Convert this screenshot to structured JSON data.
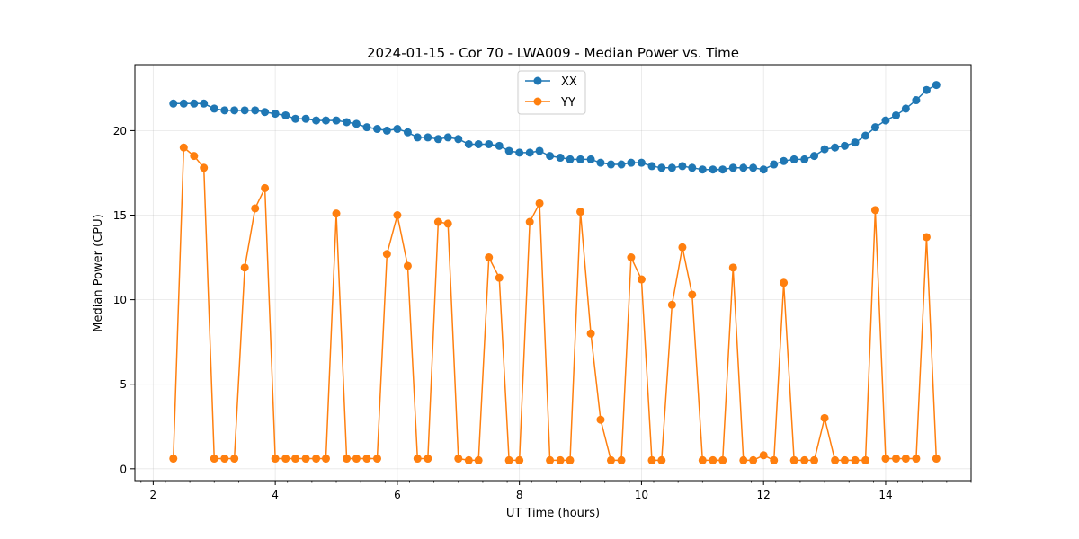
{
  "chart_data": {
    "type": "line",
    "title": "2024-01-15 - Cor 70 - LWA009 - Median Power vs. Time",
    "xlabel": "UT Time (hours)",
    "ylabel": "Median Power (CPU)",
    "xlim": [
      1.7,
      15.4
    ],
    "ylim": [
      -0.7,
      23.9
    ],
    "xticks": [
      2,
      4,
      6,
      8,
      10,
      12,
      14
    ],
    "xtick_labels": [
      "2",
      "4",
      "6",
      "8",
      "10",
      "12",
      "14"
    ],
    "yticks": [
      0,
      5,
      10,
      15,
      20
    ],
    "ytick_labels": [
      "0",
      "5",
      "10",
      "15",
      "20"
    ],
    "grid": true,
    "legend_position": "top-center",
    "x": [
      2.33,
      2.5,
      2.67,
      2.83,
      3.0,
      3.17,
      3.33,
      3.5,
      3.67,
      3.83,
      4.0,
      4.17,
      4.33,
      4.5,
      4.67,
      4.83,
      5.0,
      5.17,
      5.33,
      5.5,
      5.67,
      5.83,
      6.0,
      6.17,
      6.33,
      6.5,
      6.67,
      6.83,
      7.0,
      7.17,
      7.33,
      7.5,
      7.67,
      7.83,
      8.0,
      8.17,
      8.33,
      8.5,
      8.67,
      8.83,
      9.0,
      9.17,
      9.33,
      9.5,
      9.67,
      9.83,
      10.0,
      10.17,
      10.33,
      10.5,
      10.67,
      10.83,
      11.0,
      11.17,
      11.33,
      11.5,
      11.67,
      11.83,
      12.0,
      12.17,
      12.33,
      12.5,
      12.67,
      12.83,
      13.0,
      13.17,
      13.33,
      13.5,
      13.67,
      13.83,
      14.0,
      14.17,
      14.33,
      14.5,
      14.67,
      14.83
    ],
    "series": [
      {
        "name": "XX",
        "color": "#1f77b4",
        "values": [
          21.6,
          21.6,
          21.6,
          21.6,
          21.3,
          21.2,
          21.2,
          21.2,
          21.2,
          21.1,
          21.0,
          20.9,
          20.7,
          20.7,
          20.6,
          20.6,
          20.6,
          20.5,
          20.4,
          20.2,
          20.1,
          20.0,
          20.1,
          19.9,
          19.6,
          19.6,
          19.5,
          19.6,
          19.5,
          19.2,
          19.2,
          19.2,
          19.1,
          18.8,
          18.7,
          18.7,
          18.8,
          18.5,
          18.4,
          18.3,
          18.3,
          18.3,
          18.1,
          18.0,
          18.0,
          18.1,
          18.1,
          17.9,
          17.8,
          17.8,
          17.9,
          17.8,
          17.7,
          17.7,
          17.7,
          17.8,
          17.8,
          17.8,
          17.7,
          18.0,
          18.2,
          18.3,
          18.3,
          18.5,
          18.9,
          19.0,
          19.1,
          19.3,
          19.7,
          20.2,
          20.6,
          20.9,
          21.3,
          21.8,
          22.4,
          22.7
        ]
      },
      {
        "name": "YY",
        "color": "#ff7f0e",
        "values": [
          0.6,
          19.0,
          18.5,
          17.8,
          0.6,
          0.6,
          0.6,
          11.9,
          15.4,
          16.6,
          0.6,
          0.6,
          0.6,
          0.6,
          0.6,
          0.6,
          15.1,
          0.6,
          0.6,
          0.6,
          0.6,
          12.7,
          15.0,
          12.0,
          0.6,
          0.6,
          14.6,
          14.5,
          0.6,
          0.5,
          0.5,
          12.5,
          11.3,
          0.5,
          0.5,
          14.6,
          15.7,
          0.5,
          0.5,
          0.5,
          15.2,
          8.0,
          2.9,
          0.5,
          0.5,
          12.5,
          11.2,
          0.5,
          0.5,
          9.7,
          13.1,
          10.3,
          0.5,
          0.5,
          0.5,
          11.9,
          0.5,
          0.5,
          0.8,
          0.5,
          11.0,
          0.5,
          0.5,
          0.5,
          3.0,
          0.5,
          0.5,
          0.5,
          0.5,
          15.3,
          0.6,
          0.6,
          0.6,
          0.6,
          13.7,
          0.6
        ]
      }
    ]
  }
}
